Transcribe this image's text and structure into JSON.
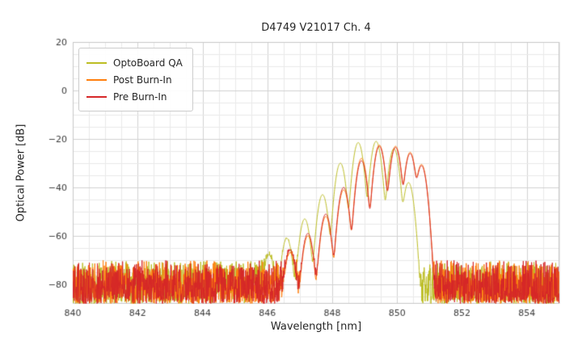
{
  "chart_data": {
    "type": "line",
    "title": "D4749 V21017 Ch. 4",
    "xlabel": "Wavelength [nm]",
    "ylabel": "Optical Power [dB]",
    "xlim": [
      840,
      855
    ],
    "ylim": [
      -88,
      20
    ],
    "xticks": [
      840,
      842,
      844,
      846,
      848,
      850,
      852,
      854
    ],
    "xtick_labels": [
      "840",
      "842",
      "844",
      "846",
      "848",
      "850",
      "852",
      "854"
    ],
    "yticks": [
      20,
      0,
      -20,
      -40,
      -60,
      -80
    ],
    "ytick_labels": [
      "20",
      "0",
      "−20",
      "−40",
      "−60",
      "−80"
    ],
    "grid": true,
    "minor_grid_x_nm": 0.5,
    "minor_grid_y_db": 5,
    "legend_position": "upper left",
    "mode_sigma_nm": 0.08,
    "noise": {
      "top_db": -70,
      "bottom_db": -88
    },
    "series": [
      {
        "name": "OptoBoard QA",
        "color": "#bcbd22",
        "modes": [
          {
            "x": 846.05,
            "peak": -68
          },
          {
            "x": 846.6,
            "peak": -61
          },
          {
            "x": 847.15,
            "peak": -53
          },
          {
            "x": 847.7,
            "peak": -43
          },
          {
            "x": 848.25,
            "peak": -30
          },
          {
            "x": 848.8,
            "peak": -21.5
          },
          {
            "x": 849.35,
            "peak": -21
          },
          {
            "x": 849.9,
            "peak": -24
          },
          {
            "x": 850.35,
            "peak": -38
          }
        ]
      },
      {
        "name": "Post Burn-In",
        "color": "#ff7f0e",
        "modes": [
          {
            "x": 846.7,
            "peak": -67
          },
          {
            "x": 847.25,
            "peak": -60
          },
          {
            "x": 847.8,
            "peak": -52
          },
          {
            "x": 848.35,
            "peak": -41
          },
          {
            "x": 848.9,
            "peak": -28
          },
          {
            "x": 849.45,
            "peak": -22.5
          },
          {
            "x": 849.95,
            "peak": -23
          },
          {
            "x": 850.4,
            "peak": -25.5
          },
          {
            "x": 850.75,
            "peak": -30.5
          }
        ]
      },
      {
        "name": "Pre Burn-In",
        "color": "#d62728",
        "modes": [
          {
            "x": 846.7,
            "peak": -66
          },
          {
            "x": 847.25,
            "peak": -59
          },
          {
            "x": 847.8,
            "peak": -51
          },
          {
            "x": 848.35,
            "peak": -40
          },
          {
            "x": 848.9,
            "peak": -29
          },
          {
            "x": 849.45,
            "peak": -23
          },
          {
            "x": 849.95,
            "peak": -23.5
          },
          {
            "x": 850.4,
            "peak": -26
          },
          {
            "x": 850.75,
            "peak": -31
          }
        ]
      }
    ]
  }
}
